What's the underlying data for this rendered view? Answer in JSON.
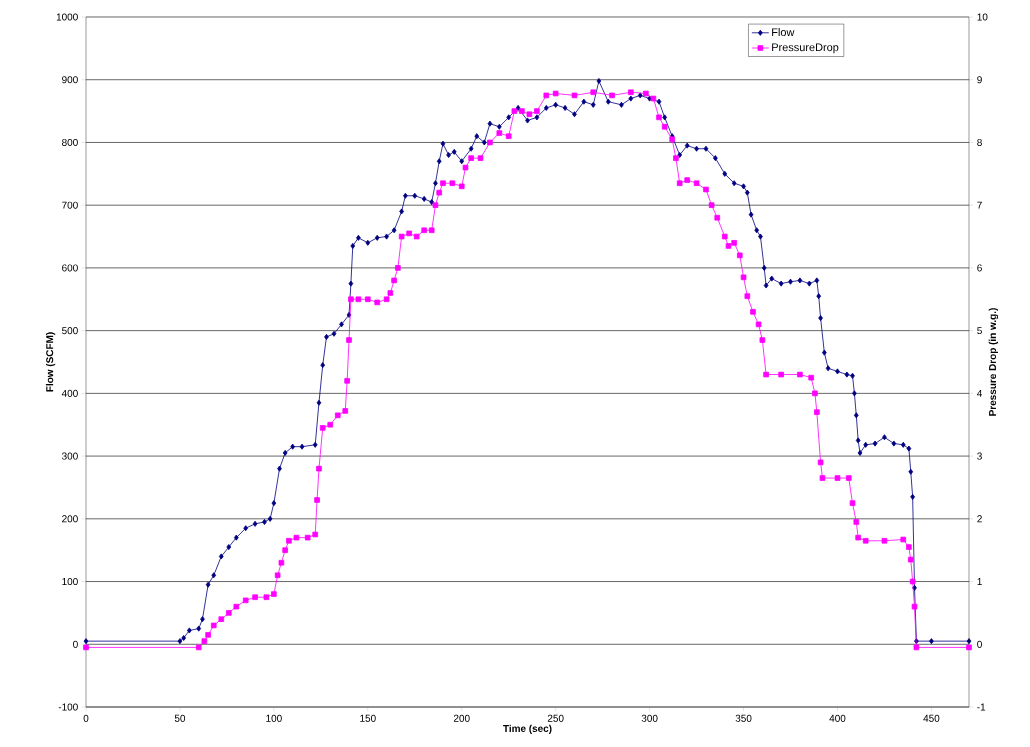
{
  "chart_data": {
    "type": "line",
    "xlabel": "Time (sec)",
    "ylabel": "Flow (SCFM)",
    "y2label": "Pressure Drop (in w.g.)",
    "xlim": [
      0,
      470
    ],
    "xticks": [
      0,
      50,
      100,
      150,
      200,
      250,
      300,
      350,
      400,
      450
    ],
    "ylim": [
      -100,
      1000
    ],
    "yticks": [
      -100,
      0,
      100,
      200,
      300,
      400,
      500,
      600,
      700,
      800,
      900,
      1000
    ],
    "y2lim": [
      -1,
      10
    ],
    "y2ticks": [
      -1,
      0,
      1,
      2,
      3,
      4,
      5,
      6,
      7,
      8,
      9,
      10
    ],
    "grid": "y",
    "legend": "top right",
    "line_style": "solid",
    "series": [
      {
        "name": "Flow",
        "color": "#000080",
        "marker": "diamond",
        "x": [
          0,
          50,
          52,
          55,
          60,
          62,
          65,
          68,
          72,
          76,
          80,
          85,
          90,
          95,
          98,
          100,
          103,
          106,
          110,
          115,
          122,
          124,
          126,
          128,
          132,
          136,
          140,
          141,
          142,
          145,
          150,
          155,
          160,
          164,
          168,
          170,
          175,
          180,
          184,
          186,
          188,
          190,
          193,
          196,
          200,
          205,
          208,
          212,
          215,
          220,
          225,
          230,
          235,
          240,
          245,
          250,
          255,
          260,
          265,
          270,
          273,
          278,
          285,
          290,
          295,
          300,
          305,
          308,
          312,
          316,
          320,
          325,
          330,
          335,
          340,
          345,
          350,
          352,
          354,
          357,
          359,
          361,
          362,
          365,
          370,
          375,
          380,
          385,
          389,
          390,
          391,
          393,
          395,
          400,
          405,
          408,
          409,
          410,
          411,
          412,
          415,
          420,
          425,
          430,
          435,
          438,
          439,
          440,
          441,
          442,
          450,
          470
        ],
        "values": [
          5,
          5,
          10,
          22,
          25,
          40,
          95,
          110,
          140,
          155,
          170,
          185,
          192,
          195,
          200,
          225,
          280,
          305,
          315,
          315,
          318,
          385,
          445,
          490,
          495,
          510,
          525,
          575,
          635,
          648,
          640,
          648,
          650,
          660,
          690,
          715,
          715,
          710,
          705,
          735,
          770,
          798,
          780,
          785,
          770,
          790,
          810,
          800,
          830,
          825,
          840,
          855,
          835,
          840,
          855,
          860,
          855,
          845,
          865,
          860,
          898,
          865,
          860,
          870,
          875,
          870,
          865,
          840,
          810,
          780,
          795,
          790,
          790,
          775,
          750,
          735,
          730,
          720,
          685,
          660,
          650,
          600,
          572,
          583,
          575,
          578,
          580,
          575,
          580,
          555,
          520,
          465,
          440,
          435,
          430,
          428,
          400,
          365,
          325,
          305,
          318,
          320,
          330,
          320,
          318,
          312,
          275,
          235,
          90,
          5,
          5,
          5
        ]
      },
      {
        "name": "PressureDrop",
        "color": "#ff00ff",
        "marker": "square",
        "axis": "y2",
        "x": [
          0,
          60,
          63,
          65,
          68,
          72,
          76,
          80,
          85,
          90,
          96,
          100,
          102,
          104,
          106,
          108,
          112,
          118,
          122,
          123,
          124,
          126,
          130,
          134,
          138,
          139,
          140,
          141,
          145,
          150,
          155,
          160,
          162,
          164,
          166,
          168,
          172,
          176,
          180,
          184,
          186,
          188,
          190,
          195,
          200,
          202,
          205,
          210,
          215,
          220,
          225,
          228,
          232,
          236,
          240,
          245,
          250,
          260,
          270,
          280,
          290,
          298,
          302,
          305,
          308,
          312,
          314,
          316,
          320,
          325,
          330,
          333,
          336,
          340,
          342,
          345,
          348,
          350,
          352,
          355,
          358,
          360,
          362,
          370,
          380,
          386,
          388,
          389,
          391,
          392,
          400,
          406,
          408,
          410,
          411,
          415,
          425,
          435,
          438,
          439,
          440,
          441,
          442,
          470
        ],
        "values": [
          -0.05,
          -0.05,
          0.05,
          0.15,
          0.3,
          0.4,
          0.5,
          0.6,
          0.7,
          0.75,
          0.75,
          0.8,
          1.1,
          1.3,
          1.5,
          1.65,
          1.7,
          1.7,
          1.75,
          2.3,
          2.8,
          3.45,
          3.5,
          3.65,
          3.72,
          4.2,
          4.85,
          5.5,
          5.5,
          5.5,
          5.45,
          5.5,
          5.6,
          5.8,
          6.0,
          6.5,
          6.55,
          6.5,
          6.6,
          6.6,
          7.0,
          7.2,
          7.35,
          7.35,
          7.3,
          7.6,
          7.75,
          7.75,
          8.0,
          8.15,
          8.1,
          8.5,
          8.5,
          8.45,
          8.5,
          8.75,
          8.78,
          8.75,
          8.8,
          8.75,
          8.8,
          8.78,
          8.7,
          8.4,
          8.25,
          8.05,
          7.75,
          7.35,
          7.4,
          7.35,
          7.25,
          7.0,
          6.8,
          6.5,
          6.35,
          6.4,
          6.2,
          5.85,
          5.55,
          5.3,
          5.1,
          4.85,
          4.3,
          4.3,
          4.3,
          4.25,
          4.0,
          3.7,
          2.9,
          2.65,
          2.65,
          2.65,
          2.25,
          1.95,
          1.7,
          1.65,
          1.65,
          1.67,
          1.55,
          1.35,
          1.0,
          0.6,
          -0.05,
          -0.05
        ]
      }
    ]
  }
}
